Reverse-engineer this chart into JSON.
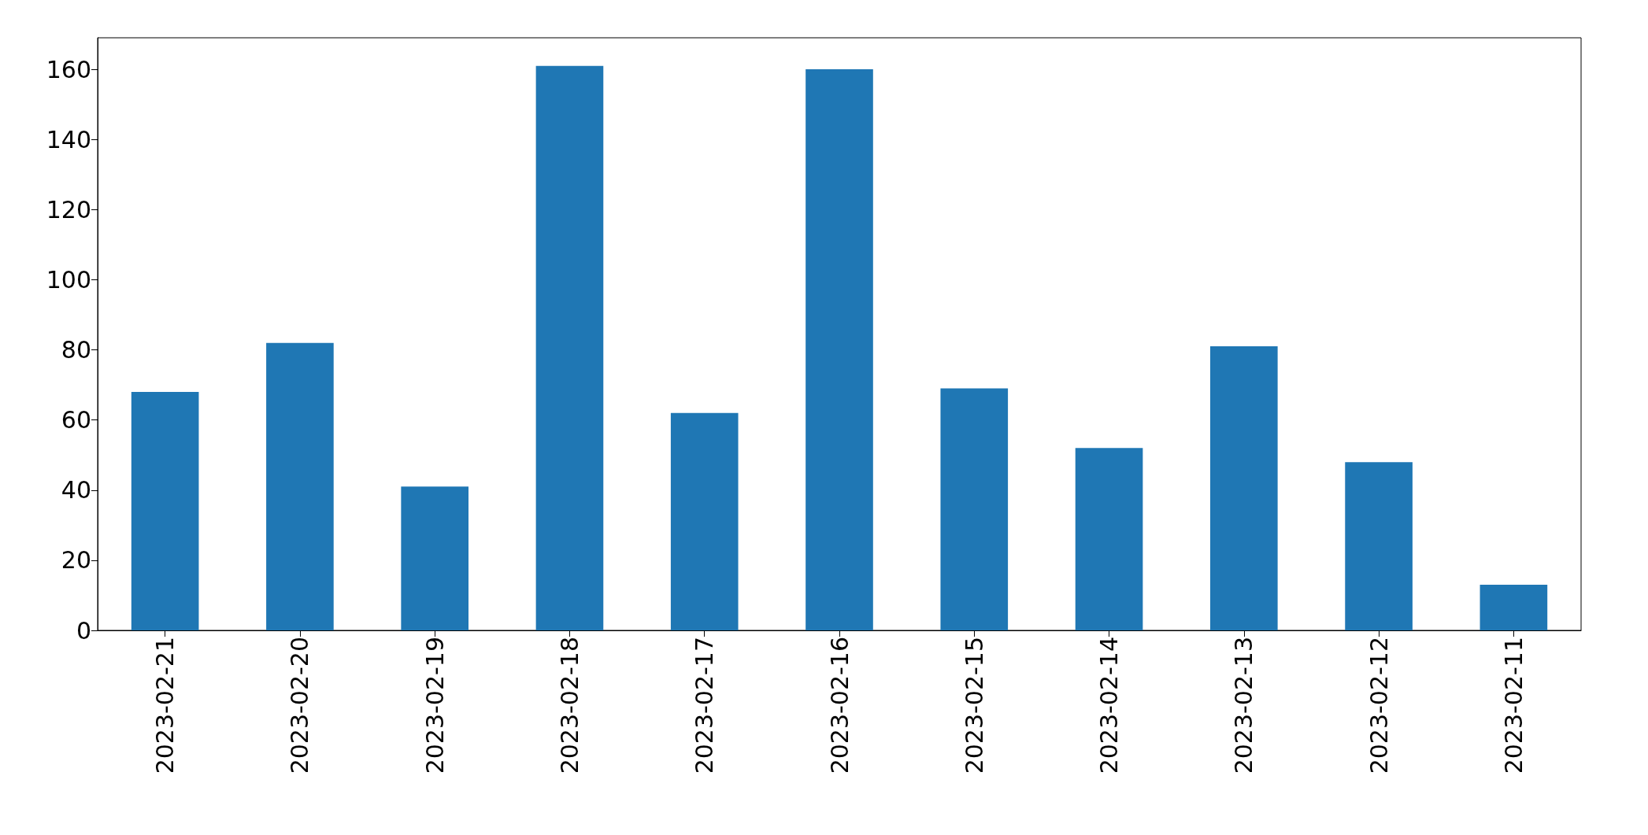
{
  "chart_data": {
    "type": "bar",
    "categories": [
      "2023-02-21",
      "2023-02-20",
      "2023-02-19",
      "2023-02-18",
      "2023-02-17",
      "2023-02-16",
      "2023-02-15",
      "2023-02-14",
      "2023-02-13",
      "2023-02-12",
      "2023-02-11"
    ],
    "values": [
      68,
      82,
      41,
      161,
      62,
      160,
      69,
      52,
      81,
      48,
      13
    ],
    "color": "#1f77b4",
    "ylim": [
      0,
      169
    ],
    "yticks": [
      0,
      20,
      40,
      60,
      80,
      100,
      120,
      140,
      160
    ],
    "grid": false
  }
}
